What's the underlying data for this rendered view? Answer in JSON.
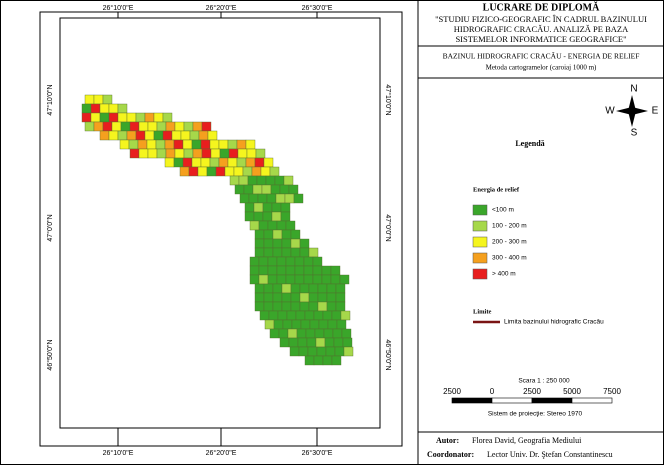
{
  "map": {
    "lon_labels": [
      "26°10'0\"E",
      "26°20'0\"E",
      "26°30'0\"E"
    ],
    "lat_labels": [
      "47°10'0\"N",
      "47°0'0\"N",
      "46°50'0\"N"
    ]
  },
  "title": {
    "heading": "LUCRARE DE DIPLOMĂ",
    "lines": [
      "\"STUDIU FIZICO-GEOGRAFIC  ÎN CADRUL BAZINULUI",
      "HIDROGRAFIC CRACĂU.  ANALIZĂ PE BAZA",
      "SISTEMELOR INFORMATICE GEOGRAFICE\""
    ]
  },
  "map_title": "BAZINUL HIDROGRAFIC CRACĂU - ENERGIA DE RELIEF",
  "map_subtitle": "Metoda cartogramelor (caroiaj 1000 m)",
  "compass": {
    "n": "N",
    "e": "E",
    "s": "S",
    "w": "W"
  },
  "legend": {
    "title": "Legendă",
    "group": "Energia de relief",
    "items": [
      {
        "label": "<100 m",
        "color": "#3aa62a"
      },
      {
        "label": "100 - 200 m",
        "color": "#a6d84a"
      },
      {
        "label": "200 - 300 m",
        "color": "#f5f51e"
      },
      {
        "label": "300 - 400 m",
        "color": "#f5a01e"
      },
      {
        "label": "> 400 m",
        "color": "#e81e1e"
      }
    ],
    "limits_title": "Limite",
    "limit_label": "Limita  bazinului hidrografic Cracău",
    "limit_color": "#7a1414"
  },
  "scale": {
    "text": "Scara 1 : 250 000",
    "ticks": [
      "2500",
      "0",
      "2500",
      "5000",
      "7500"
    ],
    "projection": "Sistem de proiecţie: Stereo 1970"
  },
  "credits": {
    "author_label": "Autor:",
    "author": "Florea David, Geografia Mediului",
    "coordinator_label": "Coordonator:",
    "coordinator": "Lector Univ. Dr. Ştefan Constantinescu"
  }
}
